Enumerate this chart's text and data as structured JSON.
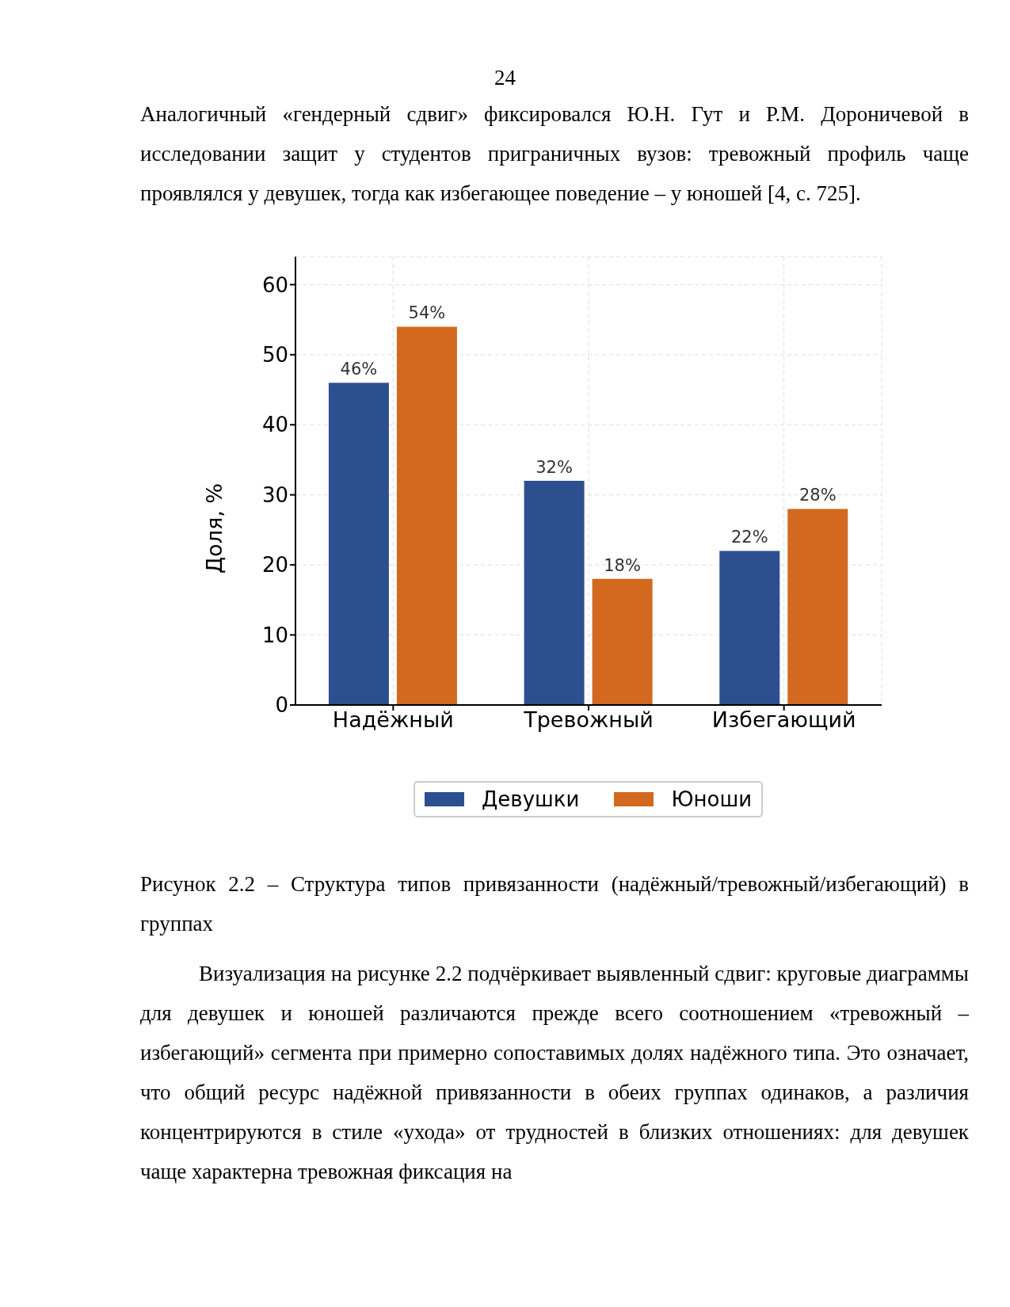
{
  "chart_data": {
    "type": "bar",
    "categories": [
      "Надёжный",
      "Тревожный",
      "Избегающий"
    ],
    "series": [
      {
        "name": "Девушки",
        "color": "#2e4f8f",
        "values": [
          46,
          32,
          22
        ],
        "value_labels": [
          "46%",
          "32%",
          "22%"
        ]
      },
      {
        "name": "Юноши",
        "color": "#d2691e",
        "values": [
          54,
          18,
          28
        ],
        "value_labels": [
          "54%",
          "18%",
          "28%"
        ]
      }
    ],
    "ylabel": "Доля, %",
    "ylim": [
      0,
      64
    ],
    "yticks": [
      0,
      10,
      20,
      30,
      40,
      50,
      60
    ],
    "grid": true,
    "legend": "bottom",
    "annotations": [
      "24",
      "Аналогичный «гендерный сдвиг» фиксировался Ю.Н. Гут и Р.М. Дороничевой в исследовании защит у студентов приграничных вузов: тревожный профиль чаще проявлялся у девушек, тогда как избегающее поведение – у юношей [4, с. 725].",
      "Рисунок 2.2 – Структура типов привязанности (надёжный/тревожный/избегающий) в группах",
      "Визуализация на рисунке 2.2 подчёркивает выявленный сдвиг: круговые диаграммы для девушек и юношей различаются прежде всего соотношением «тревожный – избегающий» сегмента при примерно сопоставимых долях надёжного типа. Это означает, что общий ресурс надёжной привязанности в обеих группах одинаков, а различия концентрируются в стиле «ухода» от трудностей в близких отношениях: для девушек чаще характерна тревожная фиксация на"
    ]
  }
}
